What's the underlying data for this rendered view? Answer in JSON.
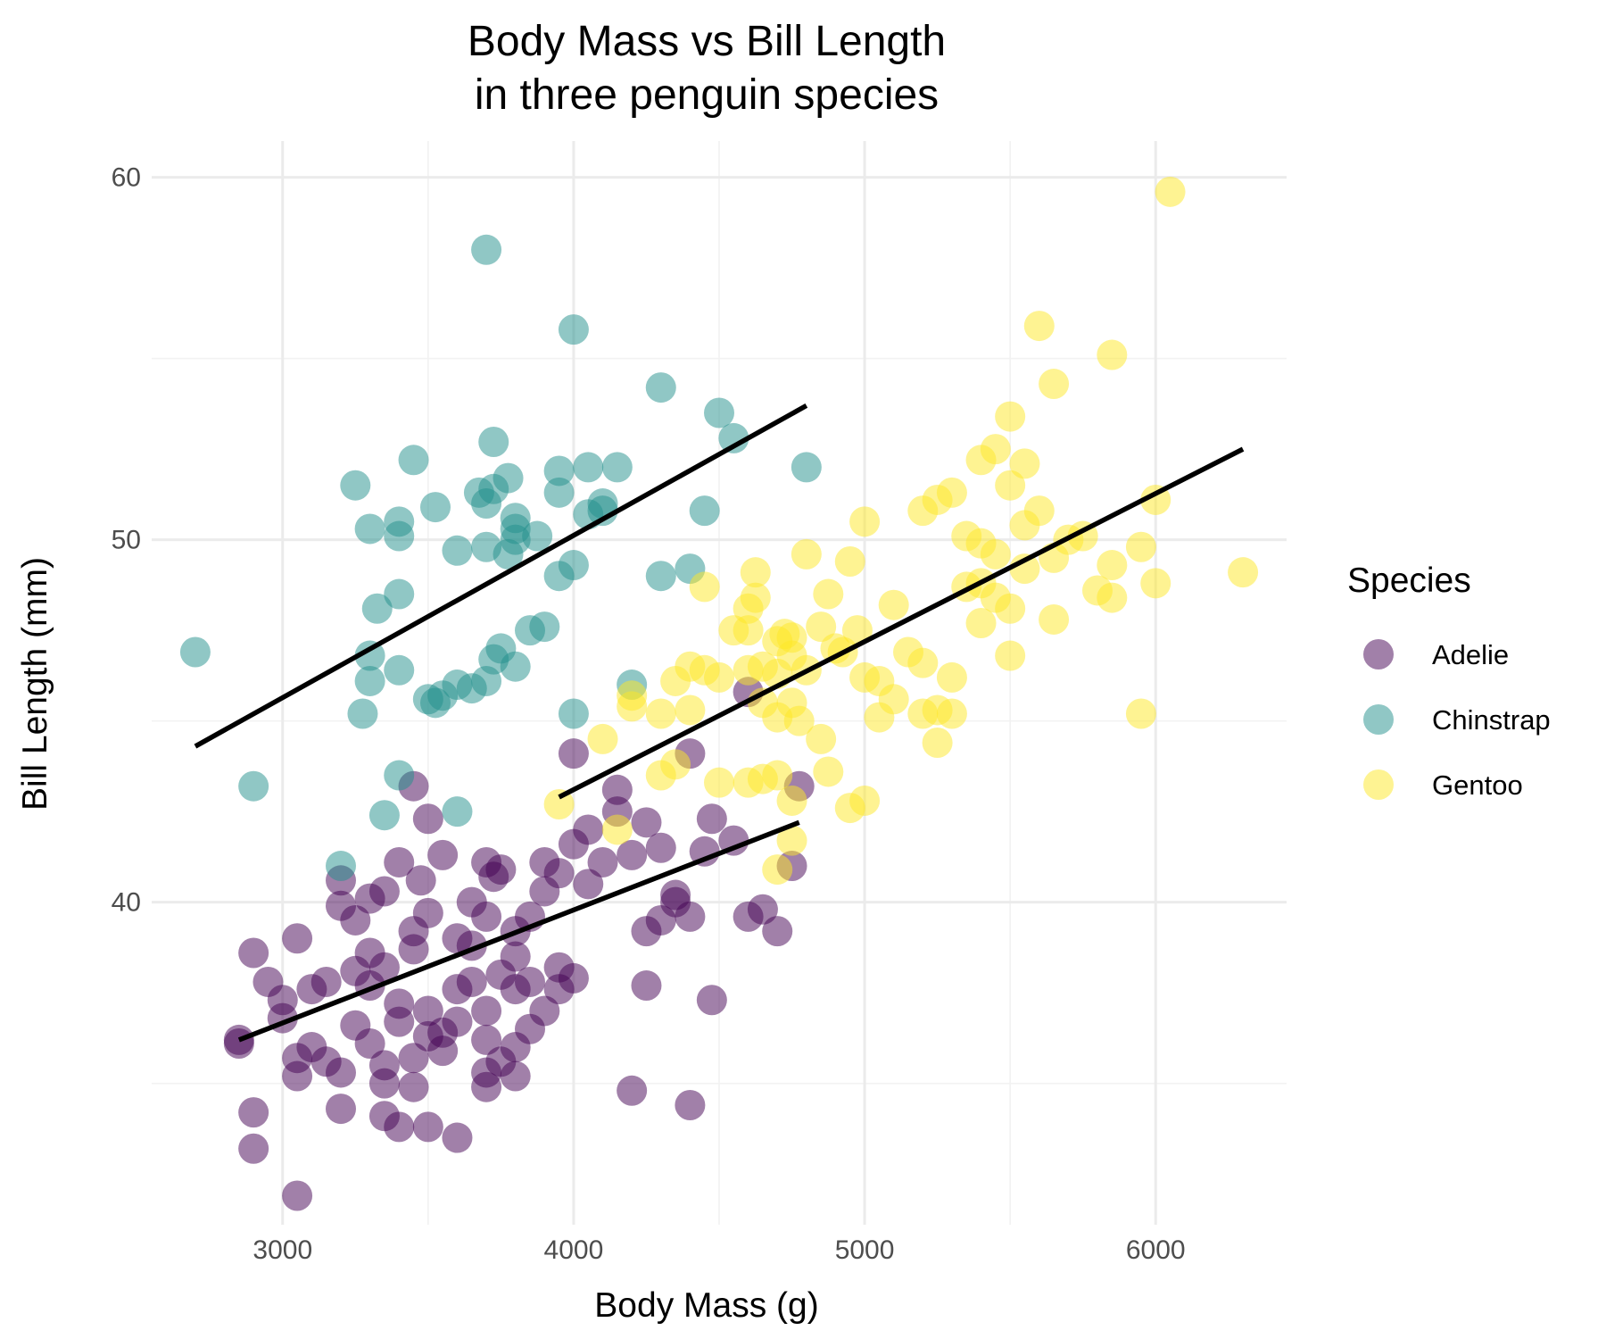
{
  "chart_data": {
    "type": "scatter",
    "title": "Body Mass vs Bill Length",
    "subtitle": "in three penguin species",
    "xlabel": "Body Mass (g)",
    "ylabel": "Bill Length (mm)",
    "xlim": [
      2550,
      6450
    ],
    "ylim": [
      31.1,
      61
    ],
    "x_ticks": [
      3000,
      4000,
      5000,
      6000
    ],
    "y_ticks": [
      40,
      50,
      60
    ],
    "x_tick_labels": [
      "3000",
      "4000",
      "5000",
      "6000"
    ],
    "y_tick_labels": [
      "40",
      "50",
      "60"
    ],
    "grid": true,
    "legend": {
      "title": "Species",
      "position": "right"
    },
    "colors": {
      "Adelie": "#440154",
      "Chinstrap": "#21908C",
      "Gentoo": "#FDE725"
    },
    "point_opacity": 0.5,
    "series": [
      {
        "name": "Adelie",
        "color": "#440154",
        "fit": {
          "x": [
            2850,
            4775
          ],
          "y": [
            36.2,
            42.2
          ]
        },
        "points": [
          [
            3050,
            31.9
          ],
          [
            2900,
            33.2
          ],
          [
            2900,
            34.2
          ],
          [
            3050,
            35.2
          ],
          [
            3200,
            34.3
          ],
          [
            3350,
            34.1
          ],
          [
            3400,
            33.8
          ],
          [
            3500,
            33.8
          ],
          [
            3600,
            33.5
          ],
          [
            3450,
            34.9
          ],
          [
            4200,
            34.8
          ],
          [
            4400,
            34.4
          ],
          [
            2850,
            36.2
          ],
          [
            2850,
            36.1
          ],
          [
            3050,
            35.7
          ],
          [
            3100,
            36.0
          ],
          [
            3150,
            35.6
          ],
          [
            3200,
            35.3
          ],
          [
            3250,
            36.6
          ],
          [
            3300,
            36.1
          ],
          [
            3350,
            35.5
          ],
          [
            3350,
            35.0
          ],
          [
            3450,
            35.7
          ],
          [
            3500,
            36.3
          ],
          [
            3550,
            35.9
          ],
          [
            3600,
            36.7
          ],
          [
            3700,
            35.3
          ],
          [
            3750,
            35.6
          ],
          [
            3800,
            36.0
          ],
          [
            3800,
            35.2
          ],
          [
            3700,
            34.9
          ],
          [
            2900,
            38.6
          ],
          [
            2950,
            37.8
          ],
          [
            3000,
            37.3
          ],
          [
            3050,
            39.0
          ],
          [
            3000,
            36.8
          ],
          [
            3100,
            37.6
          ],
          [
            3150,
            37.8
          ],
          [
            3250,
            38.1
          ],
          [
            3300,
            37.7
          ],
          [
            3350,
            38.2
          ],
          [
            3400,
            37.2
          ],
          [
            3450,
            38.7
          ],
          [
            3500,
            37.0
          ],
          [
            3550,
            36.4
          ],
          [
            3600,
            37.6
          ],
          [
            3650,
            37.8
          ],
          [
            3700,
            37.0
          ],
          [
            3700,
            36.2
          ],
          [
            3750,
            38.0
          ],
          [
            3800,
            38.5
          ],
          [
            3850,
            37.8
          ],
          [
            3900,
            37.0
          ],
          [
            3950,
            37.6
          ],
          [
            3950,
            38.2
          ],
          [
            4000,
            37.9
          ],
          [
            4250,
            37.7
          ],
          [
            4475,
            37.3
          ],
          [
            3200,
            39.9
          ],
          [
            3250,
            39.5
          ],
          [
            3300,
            40.1
          ],
          [
            3400,
            41.1
          ],
          [
            3450,
            39.2
          ],
          [
            3475,
            40.6
          ],
          [
            3500,
            39.7
          ],
          [
            3550,
            41.3
          ],
          [
            3600,
            39.0
          ],
          [
            3650,
            38.8
          ],
          [
            3700,
            39.6
          ],
          [
            3700,
            41.1
          ],
          [
            3750,
            40.9
          ],
          [
            3800,
            39.2
          ],
          [
            3850,
            39.6
          ],
          [
            3900,
            41.1
          ],
          [
            3900,
            40.3
          ],
          [
            3950,
            40.8
          ],
          [
            4000,
            41.6
          ],
          [
            4050,
            42.0
          ],
          [
            4100,
            41.1
          ],
          [
            4150,
            42.5
          ],
          [
            4200,
            41.3
          ],
          [
            4250,
            42.2
          ],
          [
            4300,
            41.5
          ],
          [
            4350,
            40.2
          ],
          [
            4400,
            39.6
          ],
          [
            4450,
            41.4
          ],
          [
            4475,
            42.3
          ],
          [
            4600,
            39.6
          ],
          [
            4650,
            39.8
          ],
          [
            4700,
            39.2
          ],
          [
            4750,
            41.0
          ],
          [
            4775,
            43.2
          ],
          [
            4400,
            44.1
          ],
          [
            4000,
            44.1
          ],
          [
            4600,
            45.8
          ],
          [
            3500,
            42.3
          ],
          [
            3450,
            43.2
          ],
          [
            3200,
            40.6
          ],
          [
            4150,
            43.1
          ],
          [
            4250,
            39.2
          ],
          [
            4350,
            40.0
          ],
          [
            4300,
            39.5
          ],
          [
            4050,
            40.5
          ],
          [
            3800,
            37.6
          ],
          [
            4550,
            41.7
          ],
          [
            3350,
            40.3
          ],
          [
            3650,
            40.0
          ],
          [
            3725,
            40.7
          ],
          [
            3850,
            36.5
          ],
          [
            3400,
            36.7
          ],
          [
            3300,
            38.6
          ]
        ]
      },
      {
        "name": "Chinstrap",
        "color": "#21908C",
        "fit": {
          "x": [
            2700,
            4800
          ],
          "y": [
            44.3,
            53.7
          ]
        },
        "points": [
          [
            2700,
            46.9
          ],
          [
            2900,
            43.2
          ],
          [
            3200,
            41.0
          ],
          [
            3350,
            42.4
          ],
          [
            3400,
            43.5
          ],
          [
            3600,
            42.5
          ],
          [
            3275,
            45.2
          ],
          [
            3300,
            46.1
          ],
          [
            3300,
            46.8
          ],
          [
            3400,
            46.4
          ],
          [
            3500,
            45.6
          ],
          [
            3525,
            45.5
          ],
          [
            3550,
            45.7
          ],
          [
            3600,
            46.0
          ],
          [
            3650,
            45.9
          ],
          [
            3700,
            46.1
          ],
          [
            3725,
            46.7
          ],
          [
            3750,
            47.0
          ],
          [
            3800,
            46.5
          ],
          [
            3850,
            47.5
          ],
          [
            3900,
            47.6
          ],
          [
            4000,
            45.2
          ],
          [
            4200,
            46.0
          ],
          [
            3325,
            48.1
          ],
          [
            3400,
            48.5
          ],
          [
            3600,
            49.7
          ],
          [
            3700,
            49.8
          ],
          [
            3775,
            49.6
          ],
          [
            3800,
            50.0
          ],
          [
            3875,
            50.1
          ],
          [
            3950,
            49.0
          ],
          [
            4000,
            49.3
          ],
          [
            4300,
            49.0
          ],
          [
            4400,
            49.2
          ],
          [
            3300,
            50.3
          ],
          [
            3400,
            50.5
          ],
          [
            3400,
            50.1
          ],
          [
            3525,
            50.9
          ],
          [
            3675,
            51.3
          ],
          [
            3700,
            51.0
          ],
          [
            3725,
            51.4
          ],
          [
            3800,
            50.6
          ],
          [
            3800,
            50.3
          ],
          [
            3950,
            51.3
          ],
          [
            3950,
            51.9
          ],
          [
            4050,
            50.7
          ],
          [
            4100,
            50.8
          ],
          [
            4100,
            51.0
          ],
          [
            4050,
            52.0
          ],
          [
            4150,
            52.0
          ],
          [
            4450,
            50.8
          ],
          [
            3250,
            51.5
          ],
          [
            3450,
            52.2
          ],
          [
            3725,
            52.7
          ],
          [
            3775,
            51.7
          ],
          [
            4550,
            52.8
          ],
          [
            4500,
            53.5
          ],
          [
            4300,
            54.2
          ],
          [
            4800,
            52.0
          ],
          [
            4000,
            55.8
          ],
          [
            3700,
            58.0
          ]
        ]
      },
      {
        "name": "Gentoo",
        "color": "#FDE725",
        "fit": {
          "x": [
            3950,
            6300
          ],
          "y": [
            42.9,
            52.5
          ]
        },
        "points": [
          [
            3950,
            42.7
          ],
          [
            4150,
            42.0
          ],
          [
            4100,
            44.5
          ],
          [
            4200,
            45.4
          ],
          [
            4200,
            45.7
          ],
          [
            4300,
            43.5
          ],
          [
            4350,
            43.8
          ],
          [
            4300,
            45.2
          ],
          [
            4350,
            46.1
          ],
          [
            4400,
            46.5
          ],
          [
            4400,
            45.3
          ],
          [
            4450,
            48.7
          ],
          [
            4450,
            46.4
          ],
          [
            4500,
            46.2
          ],
          [
            4550,
            47.5
          ],
          [
            4600,
            46.4
          ],
          [
            4600,
            47.5
          ],
          [
            4600,
            48.1
          ],
          [
            4625,
            48.4
          ],
          [
            4625,
            49.1
          ],
          [
            4650,
            46.5
          ],
          [
            4650,
            45.5
          ],
          [
            4700,
            46.3
          ],
          [
            4700,
            45.1
          ],
          [
            4700,
            47.2
          ],
          [
            4725,
            47.4
          ],
          [
            4750,
            47.3
          ],
          [
            4750,
            46.8
          ],
          [
            4750,
            45.5
          ],
          [
            4775,
            45.0
          ],
          [
            4800,
            49.6
          ],
          [
            4800,
            46.4
          ],
          [
            4850,
            47.6
          ],
          [
            4875,
            48.5
          ],
          [
            4900,
            47.0
          ],
          [
            4925,
            46.9
          ],
          [
            4950,
            49.4
          ],
          [
            4975,
            47.5
          ],
          [
            5000,
            50.5
          ],
          [
            5000,
            46.2
          ],
          [
            5050,
            46.1
          ],
          [
            5100,
            48.2
          ],
          [
            5150,
            46.9
          ],
          [
            5200,
            46.6
          ],
          [
            5200,
            45.2
          ],
          [
            5250,
            45.3
          ],
          [
            5250,
            44.4
          ],
          [
            5300,
            46.2
          ],
          [
            5300,
            45.2
          ],
          [
            5350,
            48.7
          ],
          [
            5400,
            48.8
          ],
          [
            5400,
            47.7
          ],
          [
            5450,
            48.4
          ],
          [
            5500,
            48.1
          ],
          [
            5500,
            46.8
          ],
          [
            5550,
            49.2
          ],
          [
            5550,
            50.4
          ],
          [
            5600,
            50.8
          ],
          [
            5650,
            49.5
          ],
          [
            5700,
            50.0
          ],
          [
            5750,
            50.1
          ],
          [
            5800,
            48.6
          ],
          [
            5850,
            48.4
          ],
          [
            5850,
            49.3
          ],
          [
            5950,
            49.8
          ],
          [
            6000,
            48.8
          ],
          [
            6000,
            51.1
          ],
          [
            6300,
            49.1
          ],
          [
            5950,
            45.2
          ],
          [
            5200,
            50.8
          ],
          [
            5250,
            51.1
          ],
          [
            5300,
            51.3
          ],
          [
            5350,
            50.1
          ],
          [
            5400,
            49.9
          ],
          [
            5400,
            52.2
          ],
          [
            5450,
            52.5
          ],
          [
            5500,
            51.5
          ],
          [
            5550,
            52.1
          ],
          [
            5500,
            53.4
          ],
          [
            5650,
            54.3
          ],
          [
            5850,
            55.1
          ],
          [
            5600,
            55.9
          ],
          [
            6050,
            59.6
          ],
          [
            4500,
            43.3
          ],
          [
            4600,
            43.3
          ],
          [
            4650,
            43.4
          ],
          [
            4700,
            43.5
          ],
          [
            4750,
            42.8
          ],
          [
            4850,
            44.5
          ],
          [
            4875,
            43.6
          ],
          [
            4950,
            42.6
          ],
          [
            5000,
            42.8
          ],
          [
            5050,
            45.1
          ],
          [
            5100,
            45.6
          ],
          [
            4700,
            40.9
          ],
          [
            4750,
            41.7
          ],
          [
            5650,
            47.8
          ],
          [
            5450,
            49.6
          ]
        ]
      }
    ]
  }
}
